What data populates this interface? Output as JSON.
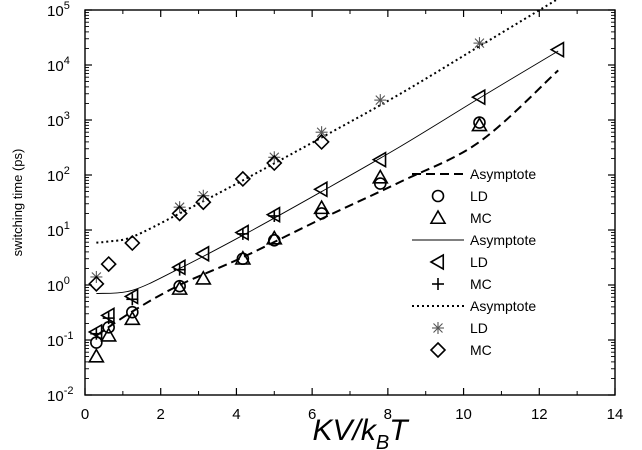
{
  "chart_data": {
    "type": "scatter",
    "xlabel": "KV/kBT",
    "ylabel": "switching time (ps)",
    "xlim": [
      0,
      14
    ],
    "ylim_log10": [
      -2,
      5
    ],
    "yscale": "log",
    "x_ticks": [
      "0",
      "2",
      "4",
      "6",
      "8",
      "10",
      "12",
      "14"
    ],
    "y_ticks": [
      {
        "base": "10",
        "exp": "-2"
      },
      {
        "base": "10",
        "exp": "-1"
      },
      {
        "base": "10",
        "exp": "0"
      },
      {
        "base": "10",
        "exp": "1"
      },
      {
        "base": "10",
        "exp": "2"
      },
      {
        "base": "10",
        "exp": "3"
      },
      {
        "base": "10",
        "exp": "4"
      },
      {
        "base": "10",
        "exp": "5"
      }
    ],
    "legend_placement": "center-right",
    "series": [
      {
        "name": "Asymptote",
        "kind": "line",
        "style": "dashed",
        "x": [
          0.3,
          1.25,
          2.5,
          4.17,
          6.25,
          8.33,
          10.42,
          12.5
        ],
        "y": [
          0.12,
          0.33,
          1.0,
          3.2,
          16,
          75,
          400,
          8000
        ]
      },
      {
        "name": "LD",
        "kind": "marker",
        "marker": "circle",
        "x": [
          0.3,
          0.625,
          1.25,
          2.5,
          4.17,
          5.0,
          6.25,
          7.8,
          10.42
        ],
        "y": [
          0.09,
          0.17,
          0.32,
          0.95,
          3.0,
          6.5,
          20,
          70,
          900
        ]
      },
      {
        "name": "MC",
        "kind": "marker",
        "marker": "triangle-up",
        "x": [
          0.3,
          0.625,
          1.25,
          2.5,
          3.125,
          4.17,
          5.0,
          6.25,
          7.8,
          10.42
        ],
        "y": [
          0.05,
          0.12,
          0.24,
          0.85,
          1.3,
          3.0,
          7.0,
          25,
          90,
          800
        ]
      },
      {
        "name": "Asymptote",
        "kind": "line",
        "style": "solid",
        "x": [
          0.3,
          1.25,
          2.5,
          4.17,
          6.25,
          8.33,
          10.42,
          12.5
        ],
        "y": [
          0.7,
          0.8,
          2.0,
          8.0,
          50,
          330,
          2500,
          18000
        ]
      },
      {
        "name": "LD",
        "kind": "marker",
        "marker": "triangle-left",
        "x": [
          0.3,
          0.625,
          1.25,
          2.5,
          3.125,
          4.17,
          5.0,
          6.25,
          7.8,
          10.42,
          12.5
        ],
        "y": [
          0.14,
          0.28,
          0.62,
          2.1,
          3.7,
          9.0,
          19,
          55,
          190,
          2600,
          19000
        ]
      },
      {
        "name": "MC",
        "kind": "marker",
        "marker": "plus",
        "x": [
          0.3,
          0.625,
          1.25,
          2.5,
          4.17,
          5.0
        ],
        "y": [
          0.13,
          0.25,
          0.55,
          1.9,
          8.5,
          18
        ]
      },
      {
        "name": "Asymptote",
        "kind": "line",
        "style": "dotted",
        "x": [
          0.3,
          0.625,
          1.25,
          2.5,
          4.17,
          6.25,
          8.33,
          10.42,
          12.5
        ],
        "y": [
          5.9,
          6.2,
          7.5,
          20,
          80,
          480,
          3000,
          22000,
          160000
        ]
      },
      {
        "name": "LD",
        "kind": "marker",
        "marker": "asterisk",
        "x": [
          0.3,
          2.5,
          3.125,
          5.0,
          6.25,
          7.8,
          10.42
        ],
        "y": [
          1.4,
          26,
          42,
          210,
          600,
          2300,
          25000
        ]
      },
      {
        "name": "MC",
        "kind": "marker",
        "marker": "diamond",
        "x": [
          0.3,
          0.625,
          1.25,
          2.5,
          3.125,
          4.17,
          5.0,
          6.25
        ],
        "y": [
          1.05,
          2.4,
          5.8,
          20,
          32,
          85,
          165,
          400
        ]
      }
    ]
  }
}
